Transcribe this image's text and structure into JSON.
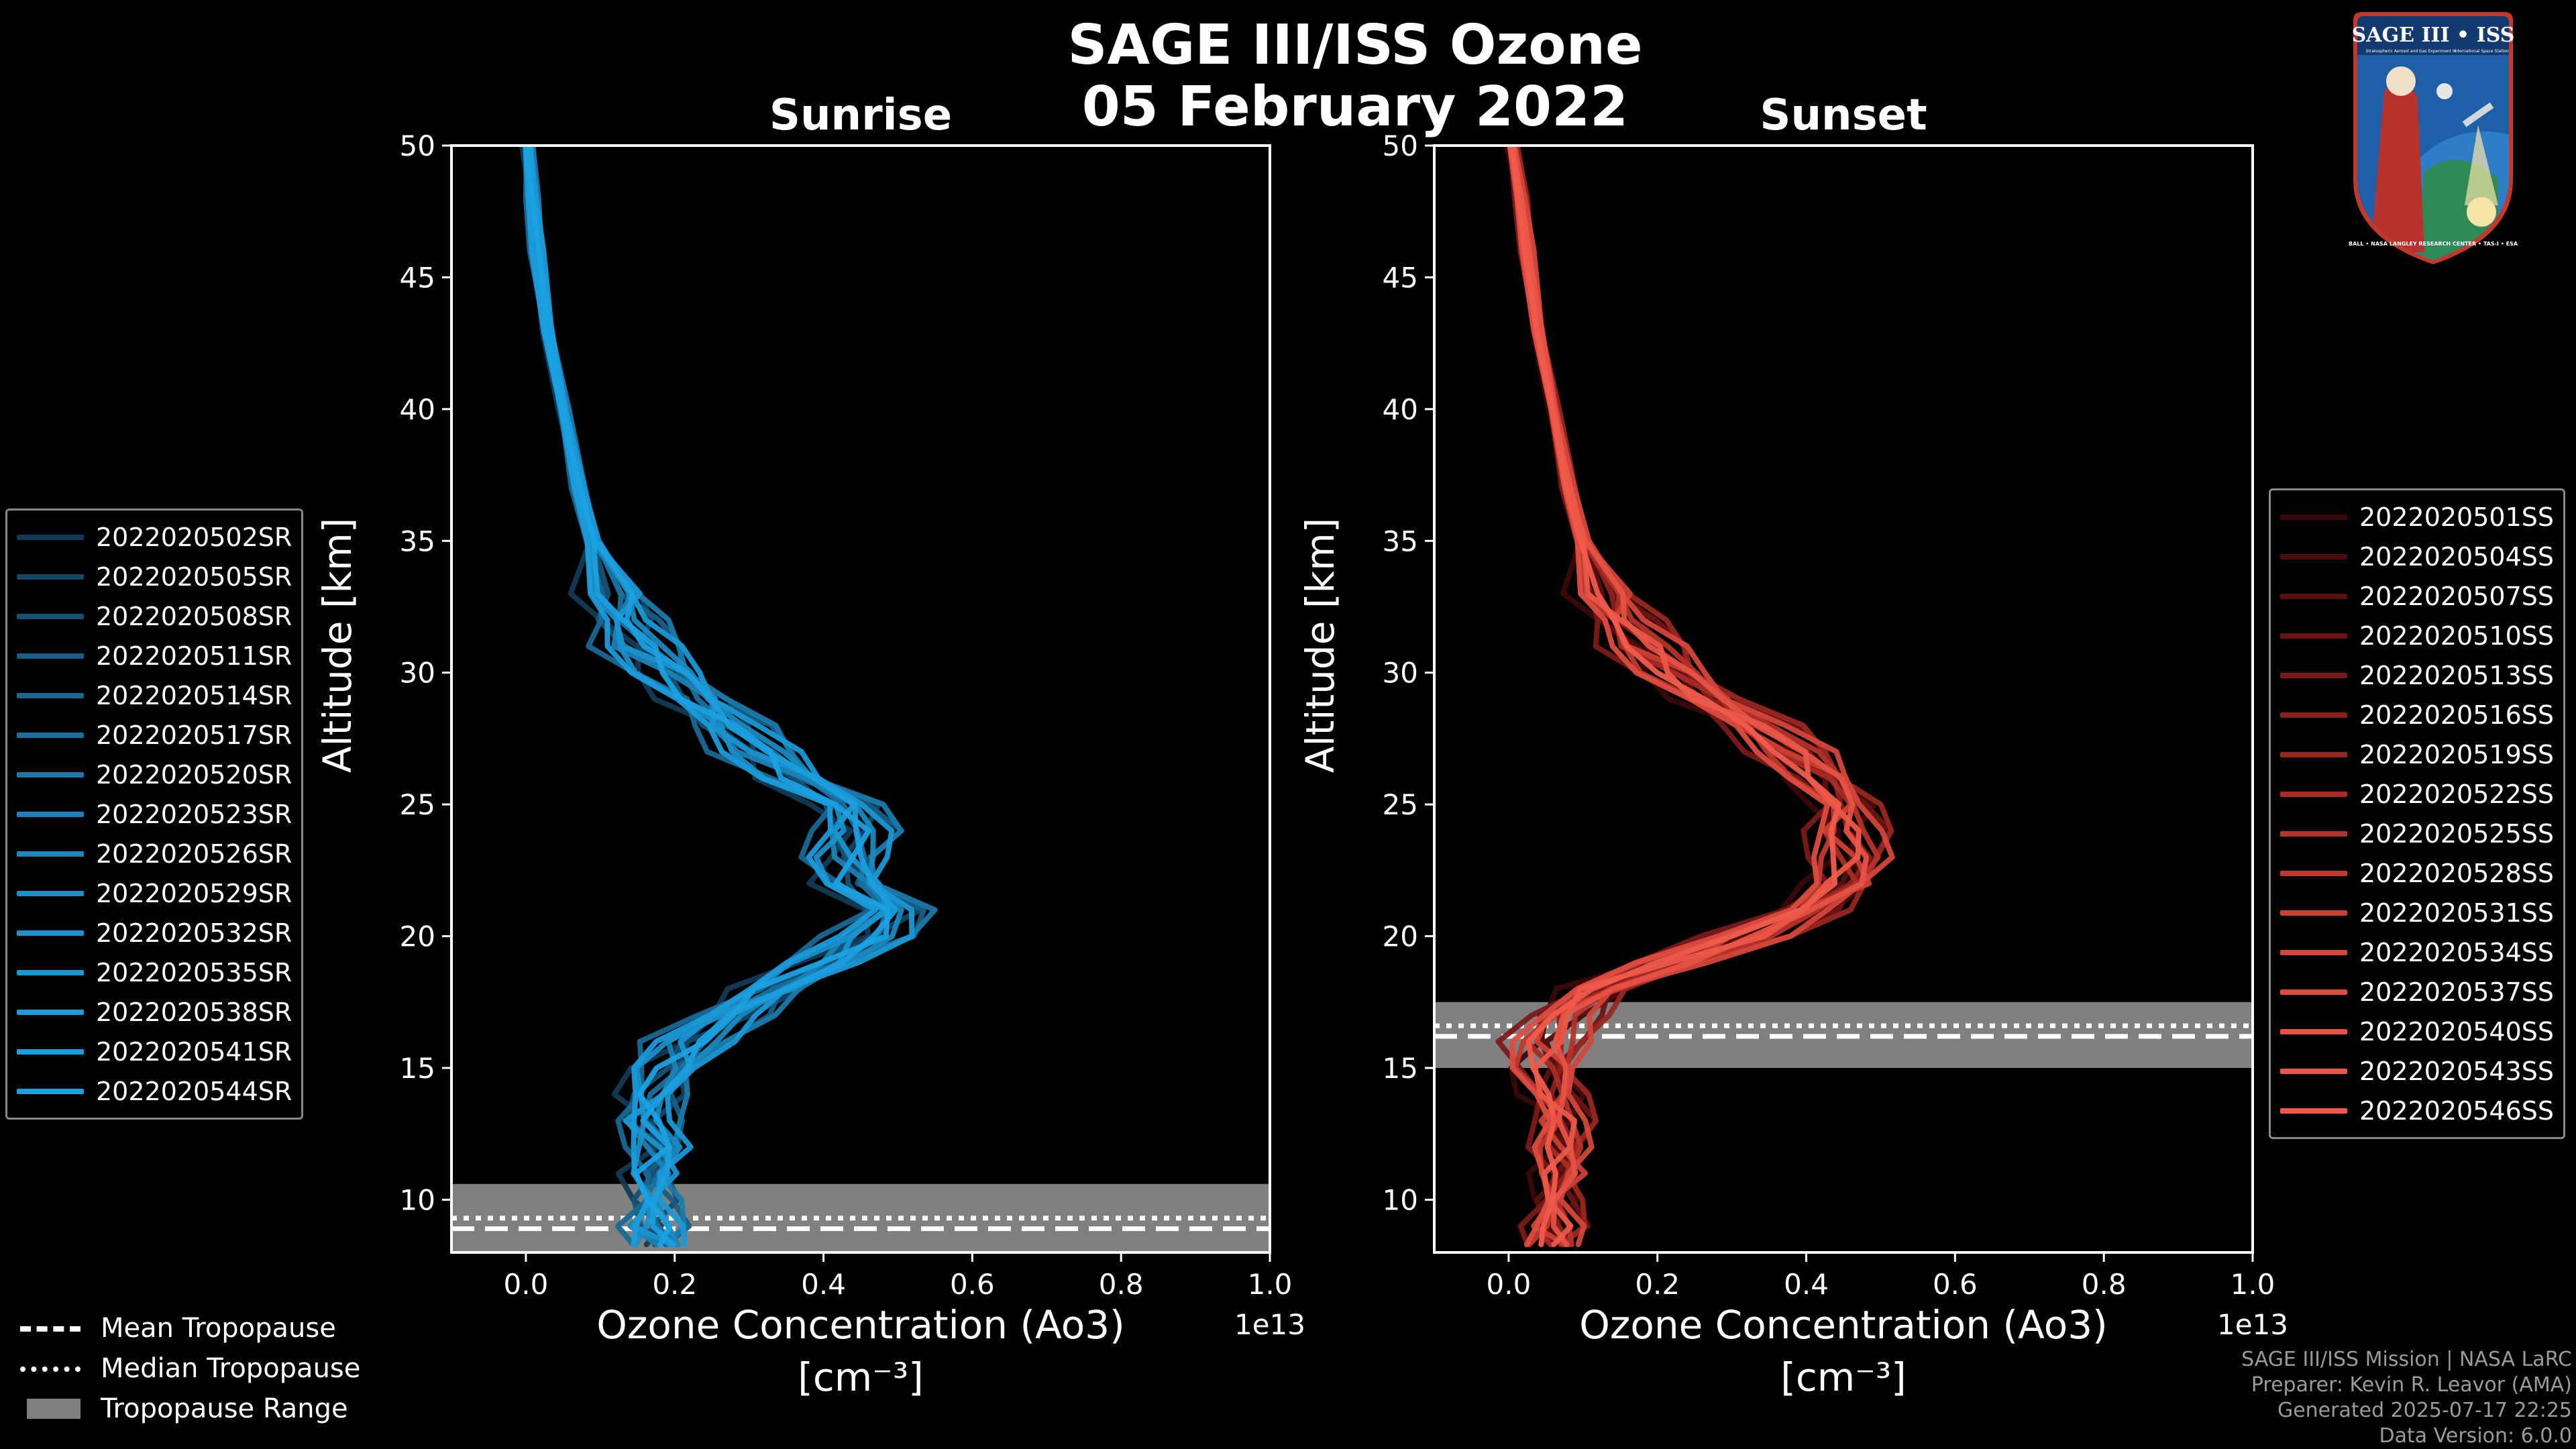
{
  "title": {
    "line1": "SAGE III/ISS Ozone",
    "line2": "05 February 2022"
  },
  "colors": {
    "sunrise": "#1a9fe0",
    "sunset": "#f05a4a",
    "tropopause_band": "#808080",
    "background": "#000000"
  },
  "chart_data": [
    {
      "type": "line",
      "title": "Sunrise",
      "xlabel_line1": "Ozone Concentration (Ao3)",
      "xlabel_line2": "[cm⁻³]",
      "xlabel": "Ozone Concentration (Ao3) [cm^-3]",
      "ylabel": "Altitude [km]",
      "xlim": [
        -0.1,
        1.0
      ],
      "ylim": [
        8,
        50
      ],
      "x_multiplier": "1e13",
      "xticks": [
        0.0,
        0.2,
        0.4,
        0.6,
        0.8,
        1.0
      ],
      "xtick_labels": [
        "0.0",
        "0.2",
        "0.4",
        "0.6",
        "0.8",
        "1.0"
      ],
      "yticks": [
        10,
        15,
        20,
        25,
        30,
        35,
        40,
        45,
        50
      ],
      "ytick_labels": [
        "10",
        "15",
        "20",
        "25",
        "30",
        "35",
        "40",
        "45",
        "50"
      ],
      "tropopause": {
        "mean": 8.9,
        "median": 9.3,
        "range": [
          8.0,
          10.6
        ]
      },
      "altitudes": [
        8.3,
        9,
        10,
        11,
        12,
        13,
        14,
        15,
        16,
        17,
        18,
        19,
        20,
        21,
        22,
        23,
        24,
        25,
        26,
        27,
        28,
        29,
        30,
        31,
        32,
        33,
        35,
        37,
        40,
        43,
        46,
        48,
        50
      ],
      "mean_profile": [
        0.18,
        0.17,
        0.17,
        0.17,
        0.18,
        0.16,
        0.17,
        0.19,
        0.22,
        0.27,
        0.33,
        0.4,
        0.46,
        0.49,
        0.44,
        0.43,
        0.44,
        0.43,
        0.36,
        0.31,
        0.27,
        0.23,
        0.19,
        0.15,
        0.13,
        0.12,
        0.09,
        0.07,
        0.05,
        0.03,
        0.015,
        0.007,
        0.003
      ],
      "series": [
        {
          "name": "2022020502SR",
          "color": "#123a55",
          "offset": -0.03,
          "noise": 1.0
        },
        {
          "name": "2022020505SR",
          "color": "#144665",
          "offset": 0.02,
          "noise": -0.8
        },
        {
          "name": "2022020508SR",
          "color": "#165275",
          "offset": -0.015,
          "noise": 0.6
        },
        {
          "name": "2022020511SR",
          "color": "#175d85",
          "offset": 0.035,
          "noise": -1.0
        },
        {
          "name": "2022020514SR",
          "color": "#186893",
          "offset": -0.04,
          "noise": 0.9
        },
        {
          "name": "2022020517SR",
          "color": "#19719f",
          "offset": 0.01,
          "noise": -0.5
        },
        {
          "name": "2022020520SR",
          "color": "#1a7aab",
          "offset": 0.045,
          "noise": 0.7
        },
        {
          "name": "2022020523SR",
          "color": "#1a82b6",
          "offset": -0.005,
          "noise": -0.9
        },
        {
          "name": "2022020526SR",
          "color": "#1a89bf",
          "offset": 0.025,
          "noise": 0.4
        },
        {
          "name": "2022020529SR",
          "color": "#1a8fc8",
          "offset": -0.025,
          "noise": -0.6
        },
        {
          "name": "2022020532SR",
          "color": "#1a94cf",
          "offset": 0.005,
          "noise": 1.0
        },
        {
          "name": "2022020535SR",
          "color": "#1a98d5",
          "offset": 0.04,
          "noise": -0.7
        },
        {
          "name": "2022020538SR",
          "color": "#1a9bda",
          "offset": -0.035,
          "noise": 0.5
        },
        {
          "name": "2022020541SR",
          "color": "#1a9ede",
          "offset": 0.015,
          "noise": -0.4
        },
        {
          "name": "2022020544SR",
          "color": "#1aa1e2",
          "offset": 0.0,
          "noise": 0.8
        }
      ]
    },
    {
      "type": "line",
      "title": "Sunset",
      "xlabel_line1": "Ozone Concentration (Ao3)",
      "xlabel_line2": "[cm⁻³]",
      "xlabel": "Ozone Concentration (Ao3) [cm^-3]",
      "ylabel": "Altitude [km]",
      "xlim": [
        -0.1,
        1.0
      ],
      "ylim": [
        8,
        50
      ],
      "x_multiplier": "1e13",
      "xticks": [
        0.0,
        0.2,
        0.4,
        0.6,
        0.8,
        1.0
      ],
      "xtick_labels": [
        "0.0",
        "0.2",
        "0.4",
        "0.6",
        "0.8",
        "1.0"
      ],
      "yticks": [
        10,
        15,
        20,
        25,
        30,
        35,
        40,
        45,
        50
      ],
      "ytick_labels": [
        "10",
        "15",
        "20",
        "25",
        "30",
        "35",
        "40",
        "45",
        "50"
      ],
      "tropopause": {
        "mean": 16.2,
        "median": 16.6,
        "range": [
          15.0,
          17.5
        ]
      },
      "altitudes": [
        8.3,
        9,
        10,
        11,
        12,
        13,
        14,
        15,
        16,
        17,
        18,
        19,
        20,
        21,
        22,
        23,
        24,
        25,
        26,
        27,
        28,
        29,
        30,
        31,
        32,
        33,
        35,
        37,
        40,
        43,
        46,
        48,
        50
      ],
      "mean_profile": [
        0.06,
        0.06,
        0.06,
        0.07,
        0.07,
        0.07,
        0.06,
        0.05,
        0.05,
        0.07,
        0.12,
        0.22,
        0.32,
        0.4,
        0.45,
        0.46,
        0.45,
        0.45,
        0.42,
        0.38,
        0.33,
        0.27,
        0.22,
        0.18,
        0.15,
        0.13,
        0.1,
        0.08,
        0.06,
        0.04,
        0.025,
        0.015,
        0.005
      ],
      "series": [
        {
          "name": "2022020501SS",
          "color": "#3a0808",
          "offset": -0.03,
          "noise": 0.9
        },
        {
          "name": "2022020504SS",
          "color": "#4a0c0c",
          "offset": 0.02,
          "noise": -0.7
        },
        {
          "name": "2022020507SS",
          "color": "#5a1010",
          "offset": -0.01,
          "noise": 0.6
        },
        {
          "name": "2022020510SS",
          "color": "#6a1514",
          "offset": 0.035,
          "noise": -0.9
        },
        {
          "name": "2022020513SS",
          "color": "#7a1a18",
          "offset": -0.04,
          "noise": 0.8
        },
        {
          "name": "2022020516SS",
          "color": "#8a201c",
          "offset": 0.01,
          "noise": -0.5
        },
        {
          "name": "2022020519SS",
          "color": "#982620",
          "offset": 0.045,
          "noise": 0.7
        },
        {
          "name": "2022020522SS",
          "color": "#a62c25",
          "offset": -0.005,
          "noise": -0.8
        },
        {
          "name": "2022020525SS",
          "color": "#b3332a",
          "offset": 0.025,
          "noise": 0.4
        },
        {
          "name": "2022020528SS",
          "color": "#bf392f",
          "offset": -0.025,
          "noise": -0.6
        },
        {
          "name": "2022020531SS",
          "color": "#ca4034",
          "offset": 0.005,
          "noise": 1.0
        },
        {
          "name": "2022020534SS",
          "color": "#d4463a",
          "offset": 0.04,
          "noise": -0.7
        },
        {
          "name": "2022020537SS",
          "color": "#dd4c3f",
          "offset": -0.035,
          "noise": 0.5
        },
        {
          "name": "2022020540SS",
          "color": "#e55244",
          "offset": 0.015,
          "noise": -0.4
        },
        {
          "name": "2022020543SS",
          "color": "#eb5748",
          "offset": 0.0,
          "noise": 0.8
        },
        {
          "name": "2022020546SS",
          "color": "#f05b4c",
          "offset": -0.015,
          "noise": -0.3
        }
      ]
    }
  ],
  "tropopause_legend": {
    "mean": "Mean Tropopause",
    "median": "Median Tropopause",
    "range": "Tropopause Range"
  },
  "credits": {
    "line1": "SAGE III/ISS Mission | NASA LaRC",
    "line2": "Preparer: Kevin R. Leavor (AMA)",
    "line3": "Generated 2025-07-17 22:25",
    "line4": "Data Version: 6.0.0"
  },
  "logo": {
    "title": "SAGE III • ISS",
    "subtitle": "Stratospheric Aerosol and Gas Experiment III",
    "side": "International Space Station",
    "ring": "BALL • NASA LANGLEY RESEARCH CENTER • TAS-I • ESA"
  }
}
